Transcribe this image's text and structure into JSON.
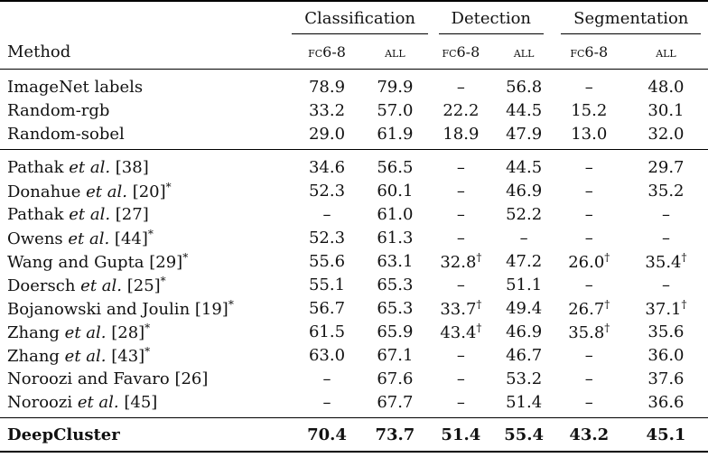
{
  "header": {
    "method_label": "Method",
    "groups": [
      "Classification",
      "Detection",
      "Segmentation"
    ],
    "subcols": [
      "fc6-8",
      "all",
      "fc6-8",
      "all",
      "fc6-8",
      "all"
    ]
  },
  "baselines": [
    {
      "name": "ImageNet labels",
      "cells": [
        "78.9",
        "79.9",
        "–",
        "56.8",
        "–",
        "48.0"
      ]
    },
    {
      "name": "Random-rgb",
      "cells": [
        "33.2",
        "57.0",
        "22.2",
        "44.5",
        "15.2",
        "30.1"
      ]
    },
    {
      "name": "Random-sobel",
      "cells": [
        "29.0",
        "61.9",
        "18.9",
        "47.9",
        "13.0",
        "32.0"
      ]
    }
  ],
  "methods": [
    {
      "pre": "Pathak ",
      "ital": "et al.",
      "post": " [38]",
      "star": "",
      "cells": [
        "34.6",
        "56.5",
        "–",
        "44.5",
        "–",
        "29.7"
      ],
      "dagger": [
        "",
        "",
        "",
        "",
        "",
        ""
      ]
    },
    {
      "pre": "Donahue ",
      "ital": "et al.",
      "post": " [20]",
      "star": "*",
      "cells": [
        "52.3",
        "60.1",
        "–",
        "46.9",
        "–",
        "35.2"
      ],
      "dagger": [
        "",
        "",
        "",
        "",
        "",
        ""
      ]
    },
    {
      "pre": "Pathak ",
      "ital": "et al.",
      "post": " [27]",
      "star": "",
      "cells": [
        "–",
        "61.0",
        "–",
        "52.2",
        "–",
        "–"
      ],
      "dagger": [
        "",
        "",
        "",
        "",
        "",
        ""
      ]
    },
    {
      "pre": "Owens ",
      "ital": "et al.",
      "post": " [44]",
      "star": "*",
      "cells": [
        "52.3",
        "61.3",
        "–",
        "–",
        "–",
        "–"
      ],
      "dagger": [
        "",
        "",
        "",
        "",
        "",
        ""
      ]
    },
    {
      "pre": "Wang and Gupta [29]",
      "ital": "",
      "post": "",
      "star": "*",
      "cells": [
        "55.6",
        "63.1",
        "32.8",
        "47.2",
        "26.0",
        "35.4"
      ],
      "dagger": [
        "",
        "",
        "†",
        "",
        "†",
        "†"
      ]
    },
    {
      "pre": "Doersch ",
      "ital": "et al.",
      "post": " [25]",
      "star": "*",
      "cells": [
        "55.1",
        "65.3",
        "–",
        "51.1",
        "–",
        "–"
      ],
      "dagger": [
        "",
        "",
        "",
        "",
        "",
        ""
      ]
    },
    {
      "pre": "Bojanowski and Joulin [19]",
      "ital": "",
      "post": "",
      "star": "*",
      "cells": [
        "56.7",
        "65.3",
        "33.7",
        "49.4",
        "26.7",
        "37.1"
      ],
      "dagger": [
        "",
        "",
        "†",
        "",
        "†",
        "†"
      ]
    },
    {
      "pre": "Zhang ",
      "ital": "et al.",
      "post": " [28]",
      "star": "*",
      "cells": [
        "61.5",
        "65.9",
        "43.4",
        "46.9",
        "35.8",
        "35.6"
      ],
      "dagger": [
        "",
        "",
        "†",
        "",
        "†",
        ""
      ]
    },
    {
      "pre": "Zhang ",
      "ital": "et al.",
      "post": " [43]",
      "star": "*",
      "cells": [
        "63.0",
        "67.1",
        "–",
        "46.7",
        "–",
        "36.0"
      ],
      "dagger": [
        "",
        "",
        "",
        "",
        "",
        ""
      ]
    },
    {
      "pre": "Noroozi and Favaro [26]",
      "ital": "",
      "post": "",
      "star": "",
      "cells": [
        "–",
        "67.6",
        "–",
        "53.2",
        "–",
        "37.6"
      ],
      "dagger": [
        "",
        "",
        "",
        "",
        "",
        ""
      ]
    },
    {
      "pre": "Noroozi ",
      "ital": "et al.",
      "post": " [45]",
      "star": "",
      "cells": [
        "–",
        "67.7",
        "–",
        "51.4",
        "–",
        "36.6"
      ],
      "dagger": [
        "",
        "",
        "",
        "",
        "",
        ""
      ]
    }
  ],
  "final": {
    "name": "DeepCluster",
    "cells": [
      "70.4",
      "73.7",
      "51.4",
      "55.4",
      "43.2",
      "45.1"
    ]
  }
}
